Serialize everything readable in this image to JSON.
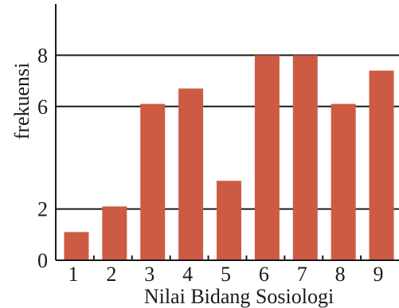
{
  "chart_data": {
    "type": "bar",
    "categories": [
      "1",
      "2",
      "3",
      "4",
      "5",
      "6",
      "7",
      "8",
      "9"
    ],
    "values": [
      1.1,
      2.1,
      6.1,
      6.7,
      3.1,
      8.0,
      8.0,
      6.1,
      7.4
    ],
    "y_tick_labels": [
      "0",
      "2",
      "6",
      "8"
    ],
    "y_tick_values": [
      0,
      2,
      6,
      8
    ],
    "xlabel": "Nilai Bidang Sosiologi",
    "ylabel": "frekuensi",
    "ylim": [
      0,
      10
    ],
    "grid": "horizontal lines at labeled ticks",
    "colors": {
      "bar": "#cd5b44",
      "axis": "#1a1a1a",
      "grid": "#1a1a1a"
    }
  }
}
